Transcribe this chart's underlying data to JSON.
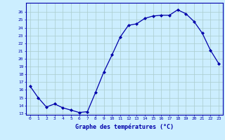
{
  "hours": [
    0,
    1,
    2,
    3,
    4,
    5,
    6,
    7,
    8,
    9,
    10,
    11,
    12,
    13,
    14,
    15,
    16,
    17,
    18,
    19,
    20,
    21,
    22,
    23
  ],
  "temps": [
    16.5,
    15.0,
    13.8,
    14.2,
    13.7,
    13.4,
    13.1,
    13.2,
    15.7,
    18.3,
    20.5,
    22.8,
    24.3,
    24.5,
    25.2,
    25.5,
    25.6,
    25.6,
    26.3,
    25.8,
    24.8,
    23.3,
    21.1,
    19.4
  ],
  "line_color": "#0000aa",
  "marker": "D",
  "marker_size": 2.0,
  "bg_color": "#cceeff",
  "grid_color": "#aacccc",
  "axis_color": "#0000aa",
  "tick_color": "#0000aa",
  "xlabel": "Graphe des températures (°C)",
  "ylim": [
    13,
    27
  ],
  "yticks": [
    13,
    14,
    15,
    16,
    17,
    18,
    19,
    20,
    21,
    22,
    23,
    24,
    25,
    26
  ],
  "xticks": [
    0,
    1,
    2,
    3,
    4,
    5,
    6,
    7,
    8,
    9,
    10,
    11,
    12,
    13,
    14,
    15,
    16,
    17,
    18,
    19,
    20,
    21,
    22,
    23
  ],
  "xlim": [
    -0.5,
    23.5
  ]
}
